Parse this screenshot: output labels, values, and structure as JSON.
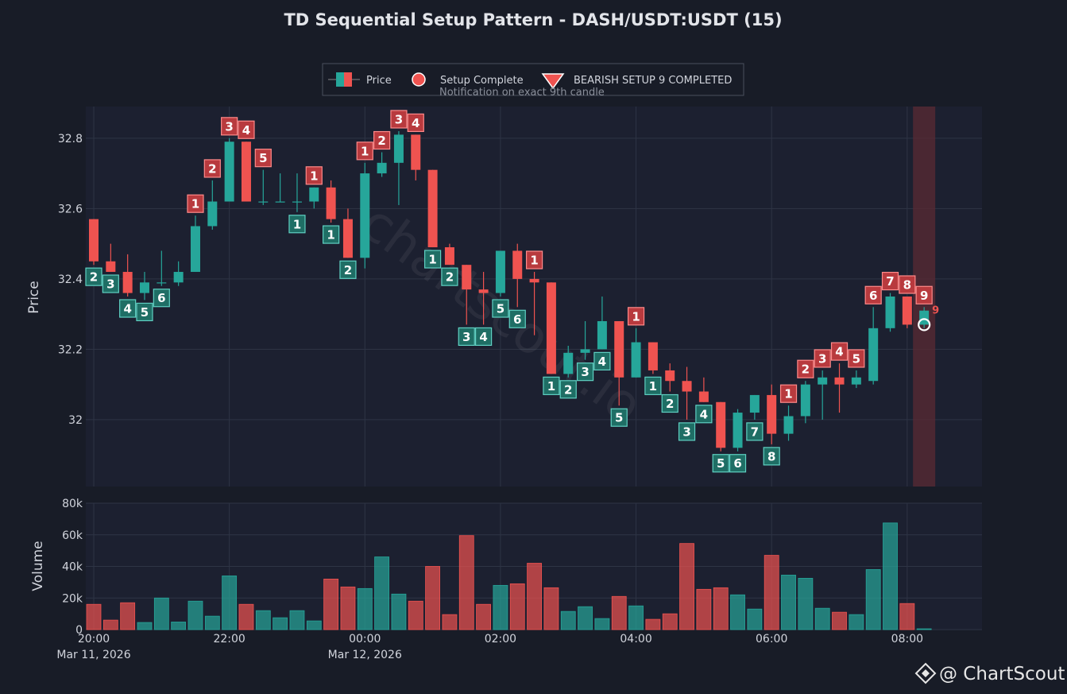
{
  "title": "TD Sequential Setup Pattern - DASH/USDT:USDT (15)",
  "legend": {
    "price_label": "Price",
    "setup_complete_label": "Setup Complete",
    "bearish_label": "BEARISH SETUP 9 COMPLETED",
    "bearish_sub": "Notification on exact 9th candle"
  },
  "watermark": "chartscout.io",
  "brand": "@ ChartScout",
  "colors": {
    "background": "#181c27",
    "plot_bg": "#1c2030",
    "grid": "#2e3445",
    "up": "#26a69a",
    "down": "#ef5350",
    "up_box": "#1f6e65",
    "down_box": "#b83a3e",
    "highlight": "#5a2a33",
    "marker": "#ef5350"
  },
  "chart_data": [
    {
      "type": "candlestick",
      "ylabel": "Price",
      "yticks": [
        32,
        32.2,
        32.4,
        32.6,
        32.8
      ],
      "ytick_labels": [
        "32",
        "32.2",
        "32.4",
        "32.6",
        "32.8"
      ],
      "ylim": [
        31.81,
        32.89
      ],
      "xticks": [
        "20:00",
        "22:00",
        "00:00",
        "02:00",
        "04:00",
        "06:00",
        "08:00"
      ],
      "xtick_dates": [
        "Mar 11, 2026",
        "",
        "Mar 12, 2026",
        "",
        "",
        "",
        ""
      ],
      "interval_minutes": 15,
      "start_time": "2026-03-11 20:00",
      "candles": [
        {
          "o": 32.57,
          "h": 32.57,
          "l": 32.44,
          "c": 32.45,
          "count": 2,
          "color": "up"
        },
        {
          "o": 32.45,
          "h": 32.5,
          "l": 32.42,
          "c": 32.42,
          "count": 3,
          "color": "up"
        },
        {
          "o": 32.42,
          "h": 32.47,
          "l": 32.35,
          "c": 32.36,
          "count": 4,
          "color": "up"
        },
        {
          "o": 32.36,
          "h": 32.42,
          "l": 32.34,
          "c": 32.39,
          "count": 5,
          "color": "up"
        },
        {
          "o": 32.39,
          "h": 32.48,
          "l": 32.38,
          "c": 32.39,
          "count": 6,
          "color": "up"
        },
        {
          "o": 32.39,
          "h": 32.45,
          "l": 32.38,
          "c": 32.42,
          "count": null,
          "color": null
        },
        {
          "o": 32.42,
          "h": 32.58,
          "l": 32.42,
          "c": 32.55,
          "count": 1,
          "color": "down"
        },
        {
          "o": 32.55,
          "h": 32.68,
          "l": 32.54,
          "c": 32.62,
          "count": 2,
          "color": "down"
        },
        {
          "o": 32.62,
          "h": 32.8,
          "l": 32.62,
          "c": 32.79,
          "count": 3,
          "color": "down"
        },
        {
          "o": 32.79,
          "h": 32.79,
          "l": 32.62,
          "c": 32.62,
          "count": 4,
          "color": "down"
        },
        {
          "o": 32.62,
          "h": 32.71,
          "l": 32.61,
          "c": 32.62,
          "count": 5,
          "color": "down"
        },
        {
          "o": 32.62,
          "h": 32.7,
          "l": 32.62,
          "c": 32.62,
          "count": null,
          "color": null
        },
        {
          "o": 32.62,
          "h": 32.7,
          "l": 32.59,
          "c": 32.62,
          "count": 1,
          "color": "up"
        },
        {
          "o": 32.62,
          "h": 32.66,
          "l": 32.6,
          "c": 32.66,
          "count": 1,
          "color": "down"
        },
        {
          "o": 32.66,
          "h": 32.68,
          "l": 32.56,
          "c": 32.57,
          "count": 1,
          "color": "up"
        },
        {
          "o": 32.57,
          "h": 32.6,
          "l": 32.46,
          "c": 32.46,
          "count": 2,
          "color": "up"
        },
        {
          "o": 32.46,
          "h": 32.73,
          "l": 32.43,
          "c": 32.7,
          "count": 1,
          "color": "down"
        },
        {
          "o": 32.7,
          "h": 32.76,
          "l": 32.69,
          "c": 32.73,
          "count": 2,
          "color": "down"
        },
        {
          "o": 32.73,
          "h": 32.82,
          "l": 32.61,
          "c": 32.81,
          "count": 3,
          "color": "down"
        },
        {
          "o": 32.81,
          "h": 32.81,
          "l": 32.68,
          "c": 32.71,
          "count": 4,
          "color": "down"
        },
        {
          "o": 32.71,
          "h": 32.71,
          "l": 32.49,
          "c": 32.49,
          "count": 1,
          "color": "up"
        },
        {
          "o": 32.49,
          "h": 32.5,
          "l": 32.44,
          "c": 32.44,
          "count": 2,
          "color": "up"
        },
        {
          "o": 32.44,
          "h": 32.44,
          "l": 32.27,
          "c": 32.37,
          "count": 3,
          "color": "up"
        },
        {
          "o": 32.37,
          "h": 32.42,
          "l": 32.27,
          "c": 32.36,
          "count": 4,
          "color": "up"
        },
        {
          "o": 32.36,
          "h": 32.48,
          "l": 32.35,
          "c": 32.48,
          "count": 5,
          "color": "up"
        },
        {
          "o": 32.48,
          "h": 32.5,
          "l": 32.32,
          "c": 32.4,
          "count": 6,
          "color": "up"
        },
        {
          "o": 32.4,
          "h": 32.42,
          "l": 32.24,
          "c": 32.39,
          "count": 1,
          "color": "down"
        },
        {
          "o": 32.39,
          "h": 32.39,
          "l": 32.13,
          "c": 32.13,
          "count": 1,
          "color": "up"
        },
        {
          "o": 32.13,
          "h": 32.21,
          "l": 32.12,
          "c": 32.19,
          "count": 2,
          "color": "up"
        },
        {
          "o": 32.19,
          "h": 32.28,
          "l": 32.17,
          "c": 32.2,
          "count": 3,
          "color": "up"
        },
        {
          "o": 32.2,
          "h": 32.35,
          "l": 32.2,
          "c": 32.28,
          "count": 4,
          "color": "up"
        },
        {
          "o": 32.28,
          "h": 32.28,
          "l": 32.04,
          "c": 32.12,
          "count": 5,
          "color": "up"
        },
        {
          "o": 32.12,
          "h": 32.26,
          "l": 32.12,
          "c": 32.22,
          "count": 1,
          "color": "down"
        },
        {
          "o": 32.22,
          "h": 32.22,
          "l": 32.13,
          "c": 32.14,
          "count": 1,
          "color": "up"
        },
        {
          "o": 32.14,
          "h": 32.16,
          "l": 32.08,
          "c": 32.11,
          "count": 2,
          "color": "up"
        },
        {
          "o": 32.11,
          "h": 32.15,
          "l": 32.0,
          "c": 32.08,
          "count": 3,
          "color": "up"
        },
        {
          "o": 32.08,
          "h": 32.12,
          "l": 32.05,
          "c": 32.05,
          "count": 4,
          "color": "up"
        },
        {
          "o": 32.05,
          "h": 32.05,
          "l": 31.91,
          "c": 31.92,
          "count": 5,
          "color": "up"
        },
        {
          "o": 31.92,
          "h": 32.03,
          "l": 31.91,
          "c": 32.02,
          "count": 6,
          "color": "up"
        },
        {
          "o": 32.02,
          "h": 32.07,
          "l": 32.0,
          "c": 32.07,
          "count": 7,
          "color": "up"
        },
        {
          "o": 32.07,
          "h": 32.1,
          "l": 31.93,
          "c": 31.96,
          "count": 8,
          "color": "up"
        },
        {
          "o": 31.96,
          "h": 32.04,
          "l": 31.94,
          "c": 32.01,
          "count": 1,
          "color": "down"
        },
        {
          "o": 32.01,
          "h": 32.11,
          "l": 31.99,
          "c": 32.1,
          "count": 2,
          "color": "down"
        },
        {
          "o": 32.1,
          "h": 32.14,
          "l": 32.0,
          "c": 32.12,
          "count": 3,
          "color": "down"
        },
        {
          "o": 32.12,
          "h": 32.16,
          "l": 32.02,
          "c": 32.1,
          "count": 4,
          "color": "down"
        },
        {
          "o": 32.1,
          "h": 32.14,
          "l": 32.09,
          "c": 32.12,
          "count": 5,
          "color": "down"
        },
        {
          "o": 32.11,
          "h": 32.32,
          "l": 32.1,
          "c": 32.26,
          "count": 6,
          "color": "down"
        },
        {
          "o": 32.26,
          "h": 32.36,
          "l": 32.25,
          "c": 32.35,
          "count": 7,
          "color": "down"
        },
        {
          "o": 32.35,
          "h": 32.35,
          "l": 32.26,
          "c": 32.27,
          "count": 8,
          "color": "down"
        },
        {
          "o": 32.27,
          "h": 32.32,
          "l": 32.26,
          "c": 32.31,
          "count": 9,
          "color": "down"
        }
      ],
      "setup_complete": {
        "index": 49,
        "price": 32.27,
        "label": "9"
      }
    },
    {
      "type": "bar",
      "ylabel": "Volume",
      "yticks": [
        0,
        20000,
        40000,
        60000,
        80000
      ],
      "ytick_labels": [
        "0",
        "20k",
        "40k",
        "60k",
        "80k"
      ],
      "ylim": [
        0,
        80000
      ],
      "values": [
        16000,
        6000,
        17000,
        4500,
        20000,
        4800,
        18000,
        8500,
        34000,
        16000,
        12000,
        7500,
        12000,
        5500,
        32000,
        27000,
        26000,
        46000,
        22500,
        18000,
        40000,
        9500,
        59500,
        16000,
        28000,
        29000,
        42000,
        26500,
        11500,
        14500,
        7000,
        21000,
        15000,
        6500,
        10000,
        54500,
        25500,
        26500,
        22000,
        13000,
        47000,
        34500,
        32500,
        13500,
        11000,
        9500,
        38000,
        67500,
        16500,
        500
      ]
    }
  ]
}
